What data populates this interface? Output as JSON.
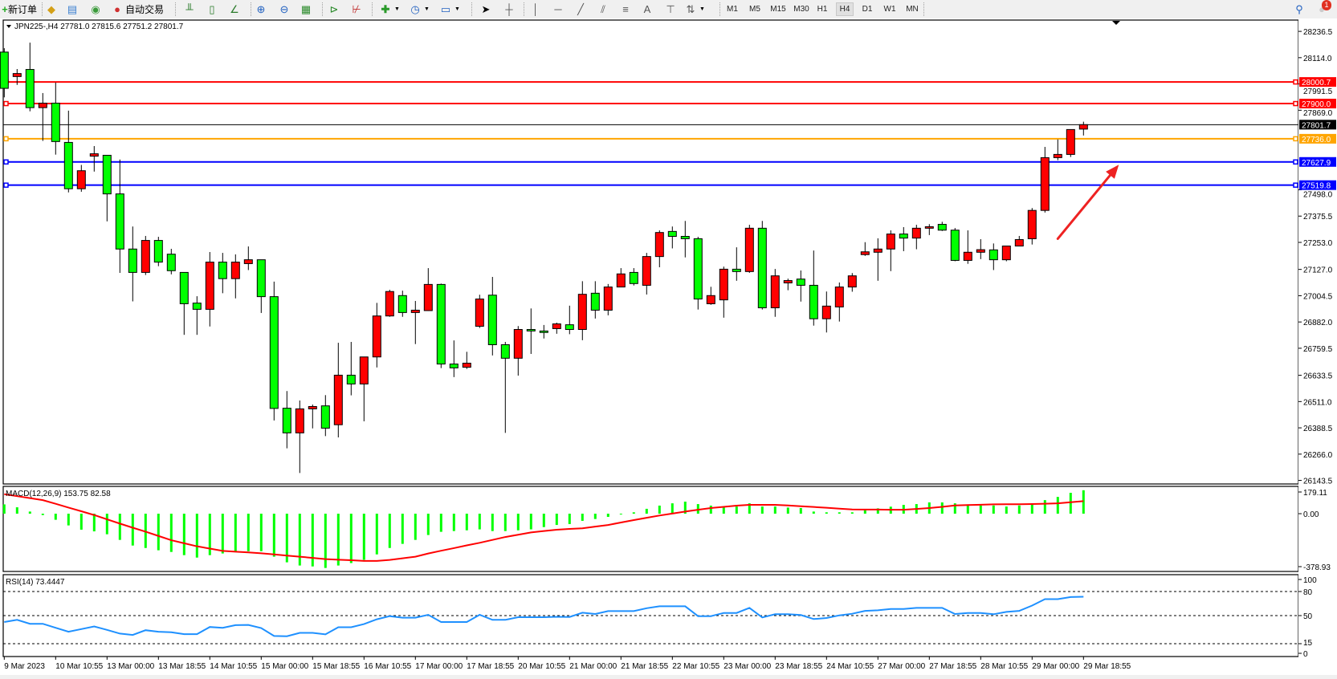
{
  "toolbar": {
    "new_order_label": "新订单",
    "auto_trading_label": "自动交易",
    "icons": [
      "new-order-icon",
      "gold-icon",
      "market-watch-icon",
      "signals-icon",
      "auto-trading-icon",
      "bar-chart-icon",
      "candlestick-icon",
      "line-chart-icon",
      "zoom-in-icon",
      "zoom-out-icon",
      "tile-windows-icon",
      "chart-shift-icon",
      "autoscroll-icon",
      "indicators-icon",
      "periods-icon",
      "templates-icon",
      "cursor-icon",
      "crosshair-icon",
      "vertical-line-icon",
      "horizontal-line-icon",
      "trendline-icon",
      "equidistant-channel-icon",
      "fibonacci-icon",
      "text-icon",
      "text-label-icon",
      "arrows-icon",
      "search-icon",
      "notification-icon"
    ],
    "timeframes": [
      "M1",
      "M5",
      "M15",
      "M30",
      "H1",
      "H4",
      "D1",
      "W1",
      "MN"
    ],
    "active_timeframe": "H4",
    "notification_count": "1"
  },
  "legend": {
    "main": "JPN225-,H4  27781.0 27815.6 27751.2 27801.7",
    "macd": "MACD(12,26,9) 153.75 82.58",
    "rsi": "RSI(14) 73.4447"
  },
  "colors": {
    "up": "#ff0000",
    "down": "#00ff00",
    "outline": "#000000",
    "macd_hist": "#00ff00",
    "macd_signal": "#ff0000",
    "rsi": "#1e90ff",
    "arrow": "#ee2222"
  },
  "chart_data": {
    "type": "candlestick",
    "symbol": "JPN225-",
    "timeframe": "H4",
    "ylim": [
      26143.5,
      28236.5
    ],
    "price_ticks": [
      "28236.5",
      "28114.0",
      "27991.5",
      "27869.0",
      "27498.0",
      "27375.5",
      "27253.0",
      "27127.0",
      "27004.5",
      "26882.0",
      "26759.5",
      "26633.5",
      "26511.0",
      "26388.5",
      "26266.0",
      "26143.5"
    ],
    "time_labels": [
      {
        "bar": 0,
        "text": "9 Mar 2023"
      },
      {
        "bar": 4,
        "text": "10 Mar 10:55"
      },
      {
        "bar": 8,
        "text": "13 Mar 00:00"
      },
      {
        "bar": 12,
        "text": "13 Mar 18:55"
      },
      {
        "bar": 16,
        "text": "14 Mar 10:55"
      },
      {
        "bar": 20,
        "text": "15 Mar 00:00"
      },
      {
        "bar": 24,
        "text": "15 Mar 18:55"
      },
      {
        "bar": 28,
        "text": "16 Mar 10:55"
      },
      {
        "bar": 32,
        "text": "17 Mar 00:00"
      },
      {
        "bar": 36,
        "text": "17 Mar 18:55"
      },
      {
        "bar": 40,
        "text": "20 Mar 10:55"
      },
      {
        "bar": 44,
        "text": "21 Mar 00:00"
      },
      {
        "bar": 48,
        "text": "21 Mar 18:55"
      },
      {
        "bar": 52,
        "text": "22 Mar 10:55"
      },
      {
        "bar": 56,
        "text": "23 Mar 00:00"
      },
      {
        "bar": 60,
        "text": "23 Mar 18:55"
      },
      {
        "bar": 64,
        "text": "24 Mar 10:55"
      },
      {
        "bar": 68,
        "text": "27 Mar 00:00"
      },
      {
        "bar": 72,
        "text": "27 Mar 18:55"
      },
      {
        "bar": 76,
        "text": "28 Mar 10:55"
      },
      {
        "bar": 80,
        "text": "29 Mar 00:00"
      },
      {
        "bar": 84,
        "text": "29 Mar 18:55"
      }
    ],
    "hlines": [
      {
        "price": 28000.7,
        "label": "28000.7",
        "color": "#ff0000"
      },
      {
        "price": 27900.0,
        "label": "27900.0",
        "color": "#ff0000"
      },
      {
        "price": 27736.0,
        "label": "27736.0",
        "color": "#ffa500"
      },
      {
        "price": 27627.9,
        "label": "27627.9",
        "color": "#0000ff"
      },
      {
        "price": 27519.8,
        "label": "27519.8",
        "color": "#0000ff"
      }
    ],
    "bid": {
      "price": 27801.7,
      "label": "27801.7",
      "color": "#000000"
    },
    "arrow": {
      "from": {
        "bar": 82,
        "price": 27270
      },
      "to": {
        "bar": 87,
        "price": 27615
      }
    },
    "candles_ohlc": [
      [
        28140,
        28158,
        27929,
        27971
      ],
      [
        28026,
        28061,
        27987,
        28040
      ],
      [
        28059,
        28184,
        27864,
        27881
      ],
      [
        27881,
        27949,
        27726,
        27902
      ],
      [
        27902,
        27998,
        27662,
        27723
      ],
      [
        27719,
        27867,
        27486,
        27503
      ],
      [
        27503,
        27614,
        27489,
        27587
      ],
      [
        27655,
        27702,
        27583,
        27666
      ],
      [
        27659,
        27659,
        27351,
        27479
      ],
      [
        27479,
        27639,
        27111,
        27222
      ],
      [
        27222,
        27327,
        26978,
        27113
      ],
      [
        27113,
        27283,
        27101,
        27262
      ],
      [
        27262,
        27279,
        27142,
        27161
      ],
      [
        27198,
        27223,
        27104,
        27121
      ],
      [
        27113,
        27113,
        26822,
        26967
      ],
      [
        26970,
        27002,
        26822,
        26941
      ],
      [
        26941,
        27208,
        26861,
        27161
      ],
      [
        27161,
        27204,
        27016,
        27084
      ],
      [
        27084,
        27197,
        26992,
        27161
      ],
      [
        27154,
        27234,
        27124,
        27172
      ],
      [
        27172,
        27172,
        26924,
        27000
      ],
      [
        27000,
        27070,
        26423,
        26479
      ],
      [
        26480,
        26560,
        26293,
        26365
      ],
      [
        26365,
        26516,
        26178,
        26477
      ],
      [
        26477,
        26497,
        26386,
        26488
      ],
      [
        26491,
        26541,
        26350,
        26387
      ],
      [
        26403,
        26785,
        26344,
        26634
      ],
      [
        26634,
        26789,
        26540,
        26593
      ],
      [
        26593,
        26719,
        26419,
        26719
      ],
      [
        26719,
        26971,
        26670,
        26910
      ],
      [
        26910,
        27032,
        26906,
        27024
      ],
      [
        27005,
        27028,
        26906,
        26926
      ],
      [
        26926,
        26980,
        26779,
        26937
      ],
      [
        26935,
        27133,
        26933,
        27057
      ],
      [
        27057,
        27061,
        26667,
        26686
      ],
      [
        26686,
        26796,
        26625,
        26668
      ],
      [
        26671,
        26743,
        26663,
        26690
      ],
      [
        26862,
        27009,
        26854,
        26989
      ],
      [
        27007,
        27092,
        26726,
        26776
      ],
      [
        26776,
        26789,
        26365,
        26713
      ],
      [
        26713,
        26863,
        26632,
        26847
      ],
      [
        26847,
        26945,
        26733,
        26840
      ],
      [
        26840,
        26868,
        26805,
        26833
      ],
      [
        26851,
        26879,
        26827,
        26873
      ],
      [
        26869,
        26958,
        26825,
        26847
      ],
      [
        26847,
        27072,
        26797,
        27011
      ],
      [
        27016,
        27072,
        26898,
        26937
      ],
      [
        26937,
        27059,
        26913,
        27045
      ],
      [
        27045,
        27133,
        27045,
        27106
      ],
      [
        27113,
        27133,
        27052,
        27061
      ],
      [
        27053,
        27204,
        27010,
        27187
      ],
      [
        27187,
        27309,
        27137,
        27299
      ],
      [
        27304,
        27327,
        27225,
        27281
      ],
      [
        27281,
        27353,
        27183,
        27270
      ],
      [
        27270,
        27279,
        26940,
        26989
      ],
      [
        26967,
        27046,
        26962,
        27005
      ],
      [
        26985,
        27140,
        26902,
        27128
      ],
      [
        27128,
        27230,
        27074,
        27117
      ],
      [
        27117,
        27335,
        27111,
        27319
      ],
      [
        27319,
        27353,
        26940,
        26948
      ],
      [
        26948,
        27129,
        26906,
        27097
      ],
      [
        27064,
        27084,
        27030,
        27075
      ],
      [
        27082,
        27122,
        26977,
        27053
      ],
      [
        27053,
        27215,
        26865,
        26897
      ],
      [
        26897,
        27024,
        26833,
        26956
      ],
      [
        26952,
        27066,
        26884,
        27045
      ],
      [
        27045,
        27110,
        27023,
        27097
      ],
      [
        27196,
        27254,
        27190,
        27209
      ],
      [
        27207,
        27272,
        27074,
        27222
      ],
      [
        27222,
        27309,
        27119,
        27292
      ],
      [
        27292,
        27324,
        27212,
        27273
      ],
      [
        27273,
        27335,
        27221,
        27319
      ],
      [
        27319,
        27338,
        27287,
        27326
      ],
      [
        27337,
        27349,
        27306,
        27310
      ],
      [
        27310,
        27320,
        27165,
        27169
      ],
      [
        27169,
        27309,
        27153,
        27207
      ],
      [
        27207,
        27268,
        27175,
        27219
      ],
      [
        27218,
        27248,
        27124,
        27172
      ],
      [
        27172,
        27236,
        27165,
        27236
      ],
      [
        27236,
        27283,
        27236,
        27266
      ],
      [
        27270,
        27413,
        27243,
        27402
      ],
      [
        27402,
        27698,
        27392,
        27648
      ],
      [
        27648,
        27733,
        27636,
        27663
      ],
      [
        27663,
        27779,
        27651,
        27779
      ],
      [
        27781.0,
        27815.6,
        27751.2,
        27801.7
      ]
    ],
    "macd": {
      "params": "12,26,9",
      "ylim": [
        -378.93,
        179.11
      ],
      "ticks": [
        "179.11",
        "0.00",
        "-378.93"
      ],
      "histogram": [
        61,
        42,
        14,
        -9,
        -40,
        -77,
        -105,
        -116,
        -135,
        -172,
        -209,
        -225,
        -240,
        -251,
        -272,
        -288,
        -272,
        -261,
        -251,
        -246,
        -246,
        -282,
        -319,
        -340,
        -346,
        -356,
        -340,
        -324,
        -303,
        -267,
        -225,
        -198,
        -172,
        -140,
        -119,
        -114,
        -109,
        -103,
        -114,
        -114,
        -109,
        -103,
        -88,
        -74,
        -68,
        -47,
        -35,
        -21,
        -2,
        9,
        32,
        53,
        68,
        79,
        63,
        53,
        46,
        47,
        68,
        47,
        47,
        40,
        37,
        14,
        9,
        9,
        9,
        23,
        35,
        46,
        58,
        63,
        74,
        74,
        68,
        61,
        54,
        54,
        47,
        54,
        61,
        89,
        110,
        137,
        153.75
      ],
      "signal": [
        128,
        115,
        102,
        89,
        65,
        40,
        16,
        -9,
        -37,
        -65,
        -92,
        -118,
        -146,
        -174,
        -194,
        -214,
        -229,
        -244,
        -249,
        -254,
        -260,
        -267,
        -275,
        -282,
        -290,
        -298,
        -302,
        -305,
        -310,
        -310,
        -303,
        -293,
        -282,
        -261,
        -243,
        -226,
        -208,
        -191,
        -172,
        -153,
        -138,
        -123,
        -114,
        -105,
        -100,
        -96,
        -85,
        -74,
        -58,
        -42,
        -27,
        -12,
        1,
        14,
        26,
        37,
        45,
        53,
        58,
        58,
        58,
        54,
        49,
        44,
        39,
        33,
        28,
        27,
        27,
        26,
        26,
        31,
        37,
        45,
        54,
        57,
        59,
        61,
        62,
        62,
        63,
        65,
        68,
        75,
        82.58
      ]
    },
    "rsi": {
      "period": 14,
      "ylim": [
        0,
        100
      ],
      "levels": [
        80,
        50,
        15
      ],
      "ticks": [
        "100",
        "80",
        "50",
        "15",
        "0"
      ],
      "values": [
        42,
        44.7,
        39.8,
        39.8,
        34.8,
        29.9,
        33.2,
        36.5,
        32.2,
        27.6,
        25.9,
        31.8,
        29.9,
        29.2,
        26.9,
        26.9,
        35.8,
        34.8,
        38.1,
        38.4,
        34.5,
        24.6,
        24.3,
        28.5,
        28.5,
        26.6,
        35.5,
        35.5,
        39.4,
        45.4,
        49.3,
        47.4,
        47.4,
        51,
        42,
        42,
        42,
        51,
        44.7,
        44.7,
        48,
        48,
        48,
        48.5,
        48.3,
        53.6,
        52,
        55.6,
        55.6,
        55.6,
        59.2,
        61.6,
        61.6,
        61.6,
        49.3,
        49.3,
        53.3,
        53.3,
        59.6,
        47.7,
        51.7,
        51.7,
        50.7,
        45.7,
        47,
        50.3,
        52.3,
        55.9,
        56.6,
        58.3,
        58.3,
        59.6,
        59.6,
        59.6,
        52,
        53.3,
        53.3,
        51.7,
        54.6,
        55.9,
        62.5,
        70.5,
        70.5,
        73.1,
        73.4447
      ]
    }
  }
}
